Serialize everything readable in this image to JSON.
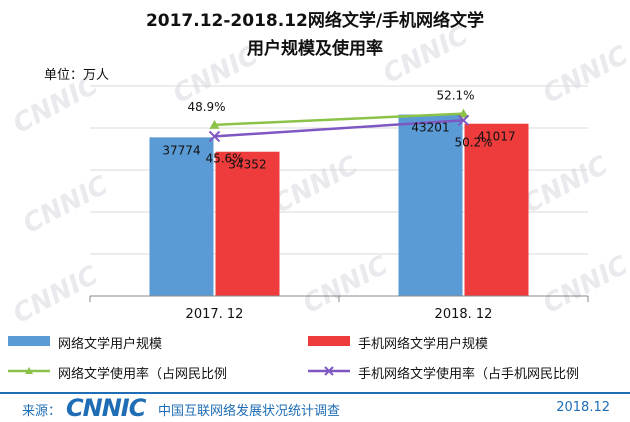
{
  "title_line1": "2017.12-2018.12网络文学/手机网络文学",
  "title_line2": "用户规模及使用率",
  "unit": "单位：万人",
  "watermark": "CNNIC",
  "chart_data": {
    "type": "bar",
    "categories": [
      "2017. 12",
      "2018. 12"
    ],
    "series": [
      {
        "name": "网络文学用户规模",
        "type": "bar",
        "values": [
          37774,
          43201
        ],
        "labels": [
          "37774",
          "43201"
        ],
        "color": "#5b9bd5"
      },
      {
        "name": "手机网络文学用户规模",
        "type": "bar",
        "values": [
          34352,
          41017
        ],
        "labels": [
          "34352",
          "41017"
        ],
        "color": "#ee3b3b"
      },
      {
        "name": "网络文学使用率（占网民比例",
        "type": "line",
        "axis": "secondary",
        "values": [
          48.9,
          52.1
        ],
        "labels": [
          "48.9%",
          "52.1%"
        ],
        "color": "#8bc34a"
      },
      {
        "name": "手机网络文学使用率（占手机网民比例",
        "type": "line",
        "axis": "secondary",
        "values": [
          45.6,
          50.2
        ],
        "labels": [
          "45.6%",
          "50.2%"
        ],
        "color": "#7e57c2"
      }
    ],
    "ylim": [
      0,
      50000
    ],
    "y2lim": [
      0,
      60
    ],
    "grid": true,
    "legend_position": "bottom"
  },
  "footer": {
    "source_label": "来源：",
    "logo_text": "CNNIC",
    "report_name": "中国互联网络发展状况统计调查",
    "date": "2018.12"
  }
}
